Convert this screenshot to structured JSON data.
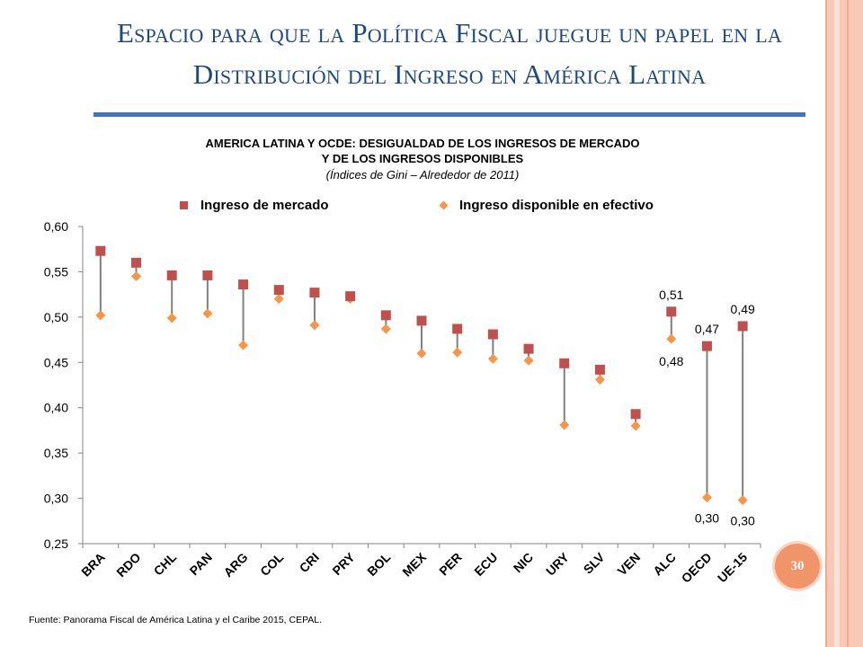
{
  "slide": {
    "title_line1": "Espacio para que la Política Fiscal juegue un papel en la",
    "title_line2": "Distribución del Ingreso en América Latina",
    "page_number": "30",
    "source": "Fuente: Panorama Fiscal de América Latina y el Caribe 2015, CEPAL.",
    "colors": {
      "title": "#1f497d",
      "rule": "#4472c4",
      "market": "#c0504d",
      "disposable": "#f79646",
      "badge": "#f0956a"
    }
  },
  "chart_data": {
    "type": "scatter",
    "title_line1": "AMERICA LATINA Y OCDE: DESIGUALDAD DE LOS INGRESOS DE MERCADO",
    "title_line2": "Y DE LOS INGRESOS DISPONIBLES",
    "subtitle": "(Índices de Gini – Alrededor de 2011)",
    "categories": [
      "BRA",
      "RDO",
      "CHL",
      "PAN",
      "ARG",
      "COL",
      "CRI",
      "PRY",
      "BOL",
      "MEX",
      "PER",
      "ECU",
      "NIC",
      "URY",
      "SLV",
      "VEN",
      "ALC",
      "OECD",
      "UE-15"
    ],
    "series": [
      {
        "name": "Ingreso de mercado",
        "marker": "square",
        "color": "#c0504d",
        "values": [
          0.573,
          0.56,
          0.546,
          0.546,
          0.536,
          0.53,
          0.527,
          0.523,
          0.502,
          0.496,
          0.487,
          0.481,
          0.465,
          0.449,
          0.442,
          0.393,
          0.506,
          0.468,
          0.49
        ]
      },
      {
        "name": "Ingreso disponible en efectivo",
        "marker": "diamond",
        "color": "#f79646",
        "values": [
          0.502,
          0.545,
          0.499,
          0.504,
          0.469,
          0.52,
          0.491,
          0.52,
          0.487,
          0.46,
          0.461,
          0.454,
          0.452,
          0.381,
          0.431,
          0.38,
          0.476,
          0.301,
          0.298
        ]
      }
    ],
    "ylim": [
      0.25,
      0.6
    ],
    "yticks": [
      "0,60",
      "0,55",
      "0,50",
      "0,45",
      "0,40",
      "0,35",
      "0,30",
      "0,25"
    ],
    "ytick_values": [
      0.6,
      0.55,
      0.5,
      0.45,
      0.4,
      0.35,
      0.3,
      0.25
    ],
    "connector_color": "#808080",
    "annotations": [
      {
        "category": "ALC",
        "series": 0,
        "text": "0,51"
      },
      {
        "category": "ALC",
        "series": 1,
        "text": "0,48"
      },
      {
        "category": "OECD",
        "series": 0,
        "text": "0,47"
      },
      {
        "category": "OECD",
        "series": 1,
        "text": "0,30"
      },
      {
        "category": "UE-15",
        "series": 0,
        "text": "0,49"
      },
      {
        "category": "UE-15",
        "series": 1,
        "text": "0,30"
      }
    ],
    "grid": false,
    "legend": "top"
  }
}
